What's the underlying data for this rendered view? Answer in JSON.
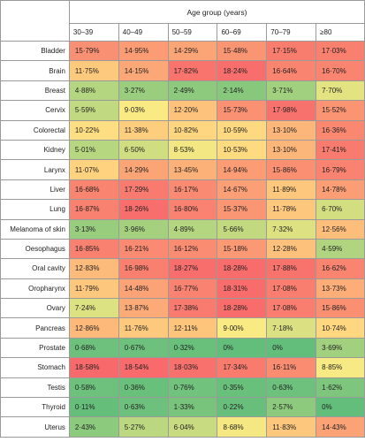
{
  "chart_data": {
    "type": "heatmap",
    "title": "Age group (years)",
    "columns": [
      "30–39",
      "40–49",
      "50–59",
      "60–69",
      "70–79",
      "≥80"
    ],
    "rows": [
      {
        "label": "Bladder",
        "values": [
          15.79,
          14.95,
          14.29,
          15.48,
          17.15,
          17.03
        ]
      },
      {
        "label": "Brain",
        "values": [
          11.75,
          14.15,
          17.82,
          18.24,
          16.64,
          16.7
        ]
      },
      {
        "label": "Breast",
        "values": [
          4.88,
          3.27,
          2.49,
          2.14,
          3.71,
          7.7
        ]
      },
      {
        "label": "Cervix",
        "values": [
          5.59,
          9.03,
          12.2,
          15.73,
          17.98,
          15.52
        ]
      },
      {
        "label": "Colorectal",
        "values": [
          10.22,
          11.38,
          10.82,
          10.59,
          13.1,
          16.36
        ]
      },
      {
        "label": "Kidney",
        "values": [
          5.01,
          6.5,
          8.53,
          10.53,
          13.1,
          17.41
        ]
      },
      {
        "label": "Larynx",
        "values": [
          11.07,
          14.29,
          13.45,
          14.94,
          15.86,
          16.79
        ]
      },
      {
        "label": "Liver",
        "values": [
          16.68,
          17.29,
          16.17,
          14.67,
          11.89,
          14.78
        ]
      },
      {
        "label": "Lung",
        "values": [
          16.87,
          18.26,
          16.8,
          15.37,
          11.78,
          6.7
        ]
      },
      {
        "label": "Melanoma of skin",
        "values": [
          3.13,
          3.96,
          4.89,
          5.66,
          7.32,
          12.56
        ]
      },
      {
        "label": "Oesophagus",
        "values": [
          16.85,
          16.21,
          16.12,
          15.18,
          12.28,
          4.59
        ]
      },
      {
        "label": "Oral cavity",
        "values": [
          12.83,
          16.98,
          18.27,
          18.28,
          17.88,
          16.62
        ]
      },
      {
        "label": "Oropharynx",
        "values": [
          11.79,
          14.48,
          16.77,
          18.31,
          17.08,
          13.73
        ]
      },
      {
        "label": "Ovary",
        "values": [
          7.24,
          13.87,
          17.38,
          18.28,
          17.08,
          15.86
        ]
      },
      {
        "label": "Pancreas",
        "values": [
          12.86,
          11.76,
          12.11,
          9.0,
          7.18,
          10.74
        ]
      },
      {
        "label": "Prostate",
        "values": [
          0.68,
          0.67,
          0.32,
          0,
          0,
          3.69
        ]
      },
      {
        "label": "Stomach",
        "values": [
          18.58,
          18.54,
          18.03,
          17.34,
          16.11,
          8.85
        ]
      },
      {
        "label": "Testis",
        "values": [
          0.58,
          0.36,
          0.76,
          0.35,
          0.63,
          1.62
        ]
      },
      {
        "label": "Thyroid",
        "values": [
          0.11,
          0.63,
          1.33,
          0.22,
          2.57,
          0
        ]
      },
      {
        "label": "Uterus",
        "values": [
          2.43,
          5.27,
          6.04,
          8.68,
          11.83,
          14.43
        ]
      }
    ],
    "display": [
      [
        "15·79%",
        "14·95%",
        "14·29%",
        "15·48%",
        "17·15%",
        "17·03%"
      ],
      [
        "11·75%",
        "14·15%",
        "17·82%",
        "18·24%",
        "16·64%",
        "16·70%"
      ],
      [
        "4·88%",
        "3·27%",
        "2·49%",
        "2·14%",
        "3·71%",
        "7·70%"
      ],
      [
        "5·59%",
        "9·03%",
        "12·20%",
        "15·73%",
        "17·98%",
        "15·52%"
      ],
      [
        "10·22%",
        "11·38%",
        "10·82%",
        "10·59%",
        "13·10%",
        "16·36%"
      ],
      [
        "5·01%",
        "6·50%",
        "8·53%",
        "10·53%",
        "13·10%",
        "17·41%"
      ],
      [
        "11·07%",
        "14·29%",
        "13·45%",
        "14·94%",
        "15·86%",
        "16·79%"
      ],
      [
        "16·68%",
        "17·29%",
        "16·17%",
        "14·67%",
        "11·89%",
        "14·78%"
      ],
      [
        "16·87%",
        "18·26%",
        "16·80%",
        "15·37%",
        "11·78%",
        "6·70%"
      ],
      [
        "3·13%",
        "3·96%",
        "4·89%",
        "5·66%",
        "7·32%",
        "12·56%"
      ],
      [
        "16·85%",
        "16·21%",
        "16·12%",
        "15·18%",
        "12·28%",
        "4·59%"
      ],
      [
        "12·83%",
        "16·98%",
        "18·27%",
        "18·28%",
        "17·88%",
        "16·62%"
      ],
      [
        "11·79%",
        "14·48%",
        "16·77%",
        "18·31%",
        "17·08%",
        "13·73%"
      ],
      [
        "7·24%",
        "13·87%",
        "17·38%",
        "18·28%",
        "17·08%",
        "15·86%"
      ],
      [
        "12·86%",
        "11·76%",
        "12·11%",
        "9·00%",
        "7·18%",
        "10·74%"
      ],
      [
        "0·68%",
        "0·67%",
        "0·32%",
        "0%",
        "0%",
        "3·69%"
      ],
      [
        "18·58%",
        "18·54%",
        "18·03%",
        "17·34%",
        "16·11%",
        "8·85%"
      ],
      [
        "0·58%",
        "0·36%",
        "0·76%",
        "0·35%",
        "0·63%",
        "1·62%"
      ],
      [
        "0·11%",
        "0·63%",
        "1·33%",
        "0·22%",
        "2·57%",
        "0%"
      ],
      [
        "2·43%",
        "5·27%",
        "6·04%",
        "8·68%",
        "11·83%",
        "14·43%"
      ]
    ],
    "value_range": [
      0,
      18.6
    ],
    "color_scale": [
      "#63be7b",
      "#ffeb84",
      "#f8696b"
    ],
    "grid": true,
    "legend": "none"
  }
}
